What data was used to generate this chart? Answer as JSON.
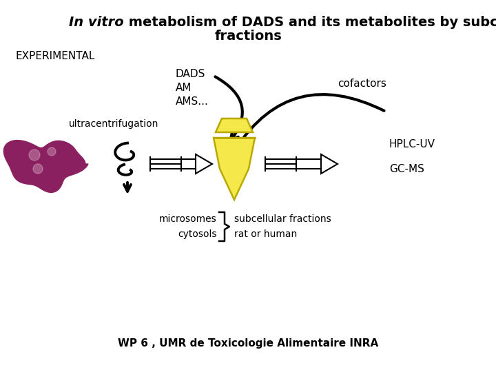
{
  "title_italic": "In vitro",
  "title_rest": " metabolism of DADS and its metabolites by subcellular",
  "title_line2": "fractions",
  "title_fontsize": 14,
  "experimental_label": "EXPERIMENTAL",
  "dads_label": "DADS",
  "am_label": "AM",
  "ams_label": "AMS...",
  "cofactors_label": "cofactors",
  "ultracentrifugation_label": "ultracentrifugation",
  "hplc_label": "HPLC-UV",
  "gcms_label": "GC-MS",
  "microsomes_label": "microsomes",
  "cytosols_label": "cytosols",
  "subcellular_label": "subcellular fractions",
  "rat_label": "rat or human",
  "footer_label": "WP 6 , UMR de Toxicologie Alimentaire INRA",
  "bg_color": "#ffffff",
  "text_color": "#000000",
  "organ_color": "#8B2060",
  "tube_body_color": "#f5e84a",
  "tube_outline_color": "#b8a800",
  "arrow_lw": 3.0
}
